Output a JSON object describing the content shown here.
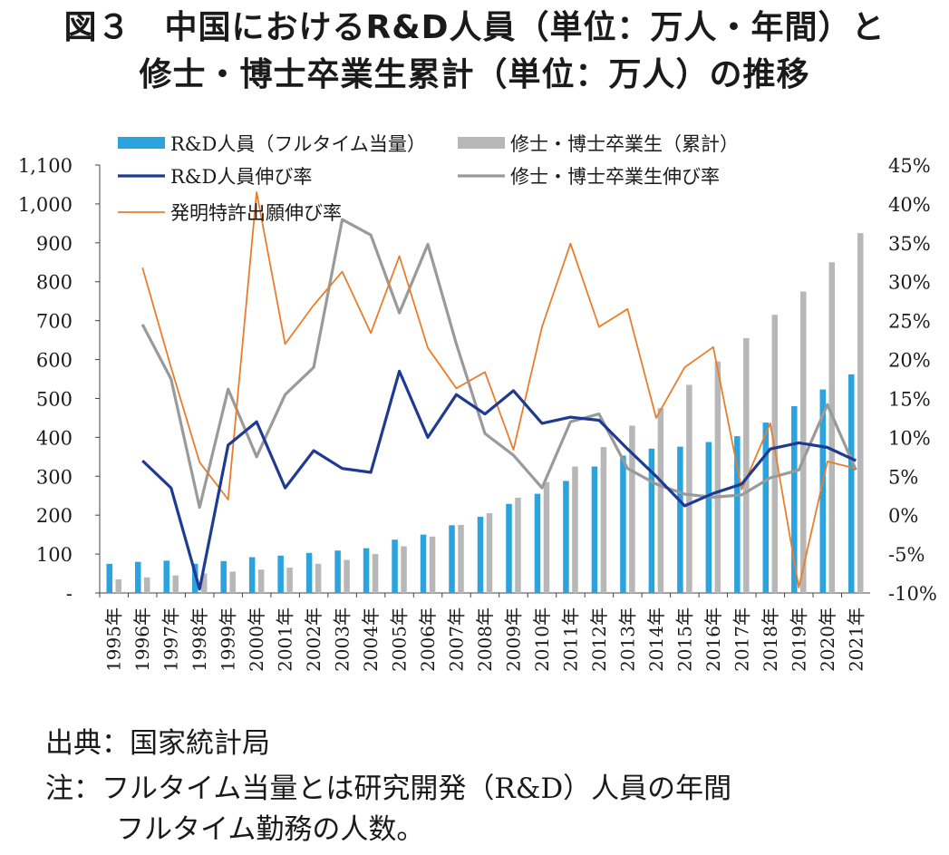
{
  "title_line1": "図３　中国におけるR&D人員（単位：万人・年間）と",
  "title_line2": "修士・博士卒業生累計（単位：万人）の推移",
  "source_note": "出典：国家統計局",
  "note_line1": "注：フルタイム当量とは研究開発（R&D）人員の年間",
  "note_line2": "フルタイム勤務の人数。",
  "colors": {
    "rd_bar": "#2aa3de",
    "grad_bar": "#b7b7b7",
    "rd_growth": "#1f3a93",
    "grad_growth": "#9a9a9a",
    "patent_growth": "#e87e2c"
  },
  "chart_data": {
    "type": "bar",
    "categories": [
      "1995年",
      "1996年",
      "1997年",
      "1998年",
      "1999年",
      "2000年",
      "2001年",
      "2002年",
      "2003年",
      "2004年",
      "2005年",
      "2006年",
      "2007年",
      "2008年",
      "2009年",
      "2010年",
      "2011年",
      "2012年",
      "2013年",
      "2014年",
      "2015年",
      "2016年",
      "2017年",
      "2018年",
      "2019年",
      "2020年",
      "2021年"
    ],
    "left_axis": {
      "range": [
        0,
        1100
      ],
      "ticks": [
        "-",
        "100",
        "200",
        "300",
        "400",
        "500",
        "600",
        "700",
        "800",
        "900",
        "1,000",
        "1,100"
      ]
    },
    "right_axis": {
      "range": [
        -10,
        45
      ],
      "ticks": [
        "-10%",
        "-5%",
        "0%",
        "5%",
        "10%",
        "15%",
        "20%",
        "25%",
        "30%",
        "35%",
        "40%",
        "45%"
      ]
    },
    "grid": false,
    "legend_position": "top",
    "series": [
      {
        "name": "R&D人員（フルタイム当量）",
        "type": "bar",
        "axis": "left",
        "values": [
          75,
          80,
          83,
          75,
          82,
          92,
          96,
          103,
          109,
          115,
          137,
          150,
          174,
          196,
          229,
          255,
          288,
          325,
          353,
          371,
          376,
          388,
          403,
          438,
          480,
          523,
          562
        ]
      },
      {
        "name": "修士・博士卒業生（累計）",
        "type": "bar",
        "axis": "left",
        "values": [
          35,
          40,
          45,
          50,
          55,
          60,
          65,
          75,
          85,
          100,
          120,
          145,
          175,
          205,
          245,
          285,
          325,
          375,
          430,
          475,
          535,
          595,
          655,
          715,
          775,
          850,
          925
        ]
      },
      {
        "name": "R&D人員伸び率",
        "type": "line",
        "axis": "right",
        "values": [
          null,
          7,
          3.5,
          -9.5,
          9,
          12,
          3.5,
          8.3,
          6,
          5.5,
          18.5,
          10,
          15.5,
          13,
          16,
          11.8,
          12.6,
          12.2,
          8.5,
          5,
          1.2,
          2.8,
          4,
          8.5,
          9.3,
          8.7,
          7
        ]
      },
      {
        "name": "修士・博士卒業生伸び率",
        "type": "line",
        "axis": "right",
        "values": [
          null,
          24.5,
          17.5,
          1,
          16.2,
          7.5,
          15.5,
          19,
          38,
          36,
          26,
          34.8,
          22,
          10.5,
          7.7,
          3.5,
          12,
          13,
          6,
          4,
          2.7,
          2.3,
          2.6,
          4.8,
          5.8,
          14.2,
          5.8
        ]
      },
      {
        "name": "発明特許出願伸び率",
        "type": "line",
        "axis": "right",
        "values": [
          null,
          31.8,
          19,
          6.8,
          2,
          41.5,
          22,
          27,
          31.3,
          23.4,
          33.3,
          21.5,
          16.3,
          18.4,
          8.4,
          24.2,
          34.9,
          24.2,
          26.5,
          12.5,
          19,
          21.6,
          3.3,
          11.8,
          -9.3,
          6.9,
          6
        ]
      }
    ]
  }
}
